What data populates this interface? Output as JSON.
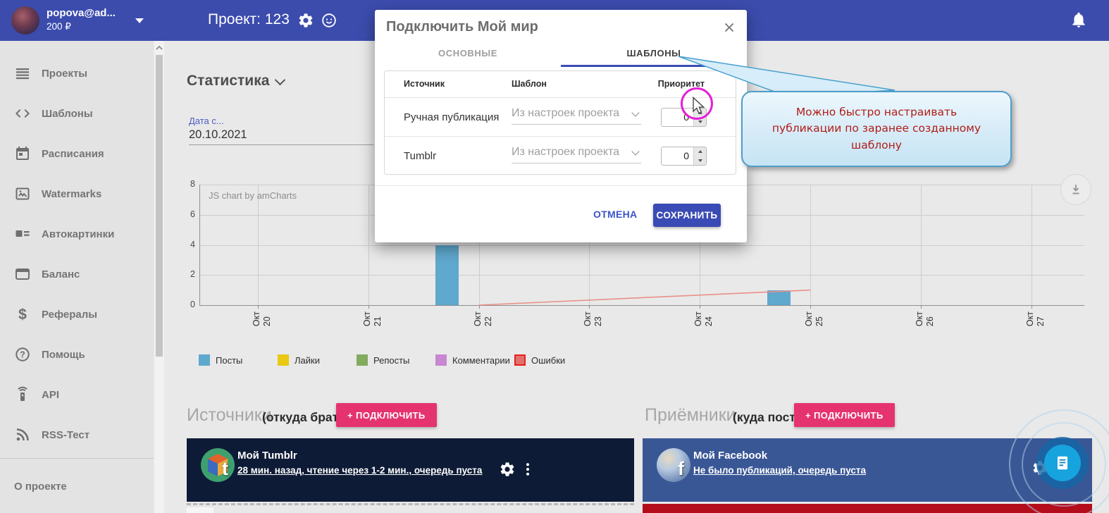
{
  "topbar": {
    "user_name": "popova@ad...",
    "balance": "200 ₽",
    "project_title": "Проект: 123"
  },
  "sidebar": {
    "items": [
      {
        "icon": "list-icon",
        "label": "Проекты"
      },
      {
        "icon": "code-icon",
        "label": "Шаблоны"
      },
      {
        "icon": "calendar-icon",
        "label": "Расписания"
      },
      {
        "icon": "image-icon",
        "label": "Watermarks"
      },
      {
        "icon": "auto-image-icon",
        "label": "Автокартинки"
      },
      {
        "icon": "wallet-icon",
        "label": "Баланс"
      },
      {
        "icon": "dollar-icon",
        "label": "Рефералы"
      },
      {
        "icon": "help-icon",
        "label": "Помощь"
      },
      {
        "icon": "remote-icon",
        "label": "API"
      },
      {
        "icon": "rss-icon",
        "label": "RSS-Тест"
      }
    ],
    "footer_link": "О проекте"
  },
  "stats": {
    "title": "Статистика",
    "date_label": "Дата с...",
    "date_value": "20.10.2021"
  },
  "chart_data": {
    "type": "bar",
    "watermark": "JS chart by amCharts",
    "x_ticks": [
      "Окт 20",
      "Окт 21",
      "Окт 22",
      "Окт 23",
      "Окт 24",
      "Окт 25",
      "Окт 26",
      "Окт 27"
    ],
    "ylim": [
      0,
      8
    ],
    "yticks": [
      0,
      2,
      4,
      6,
      8
    ],
    "grid": true,
    "legend_position": "bottom",
    "series": [
      {
        "name": "Посты",
        "type": "bar",
        "color": "#5fa8ce",
        "points": [
          {
            "x": "Окт 22",
            "y": 4
          },
          {
            "x": "Окт 25",
            "y": 1
          }
        ]
      },
      {
        "name": "Лайки",
        "type": "bar",
        "color": "#e9c913",
        "points": []
      },
      {
        "name": "Репосты",
        "type": "bar",
        "color": "#82ab60",
        "points": []
      },
      {
        "name": "Комментарии",
        "type": "bar",
        "color": "#c887d2",
        "points": []
      },
      {
        "name": "Ошибки",
        "type": "line",
        "color": "#ea8f88",
        "legend_fill": "#e4706b",
        "legend_border": "#e81f1f",
        "points": [
          {
            "x": "Окт 22",
            "y": 0
          },
          {
            "x": "Окт 25",
            "y": 1
          }
        ]
      }
    ]
  },
  "dialog": {
    "title": "Подключить Мой мир",
    "tabs": [
      {
        "label": "ОСНОВНЫЕ",
        "active": false
      },
      {
        "label": "ШАБЛОНЫ",
        "active": true
      }
    ],
    "table": {
      "columns": [
        "Источник",
        "Шаблон",
        "Приоритет"
      ],
      "rows": [
        {
          "source": "Ручная публикация",
          "template": "Из настроек проекта",
          "priority": "0"
        },
        {
          "source": "Tumblr",
          "template": "Из настроек проекта",
          "priority": "0"
        }
      ]
    },
    "cancel_label": "ОТМЕНА",
    "save_label": "СОХРАНИТЬ"
  },
  "callout": {
    "text": "Можно быстро настраивать публикации по заранее созданному шаблону"
  },
  "sources": {
    "title": "Источники",
    "hint": "(откуда брать)",
    "connect_label": "+ ПОДКЛЮЧИТЬ",
    "card": {
      "name": "Мой Tumblr",
      "status": "28 мин. назад, чтение через 1-2 мин., очередь пуста",
      "badge": "t"
    }
  },
  "receivers": {
    "title": "Приёмники",
    "hint": "(куда постить)",
    "connect_label": "+ ПОДКЛЮЧИТЬ",
    "card": {
      "name": "Мой Facebook",
      "status": "Не было публикаций, очередь пуста",
      "badge": "f"
    }
  },
  "colors": {
    "accent_indigo": "#3a4cb4",
    "topbar": "#3c4cad",
    "pink": "#e5336f",
    "tumblr_card": "#0d1b36",
    "facebook_card": "#3a5795",
    "alert_red": "#b30d1c",
    "fab_blue": "#17a3de",
    "callout_border": "#4d9dcb",
    "callout_text": "#b01d18",
    "highlight_magenta": "#e620d6"
  }
}
